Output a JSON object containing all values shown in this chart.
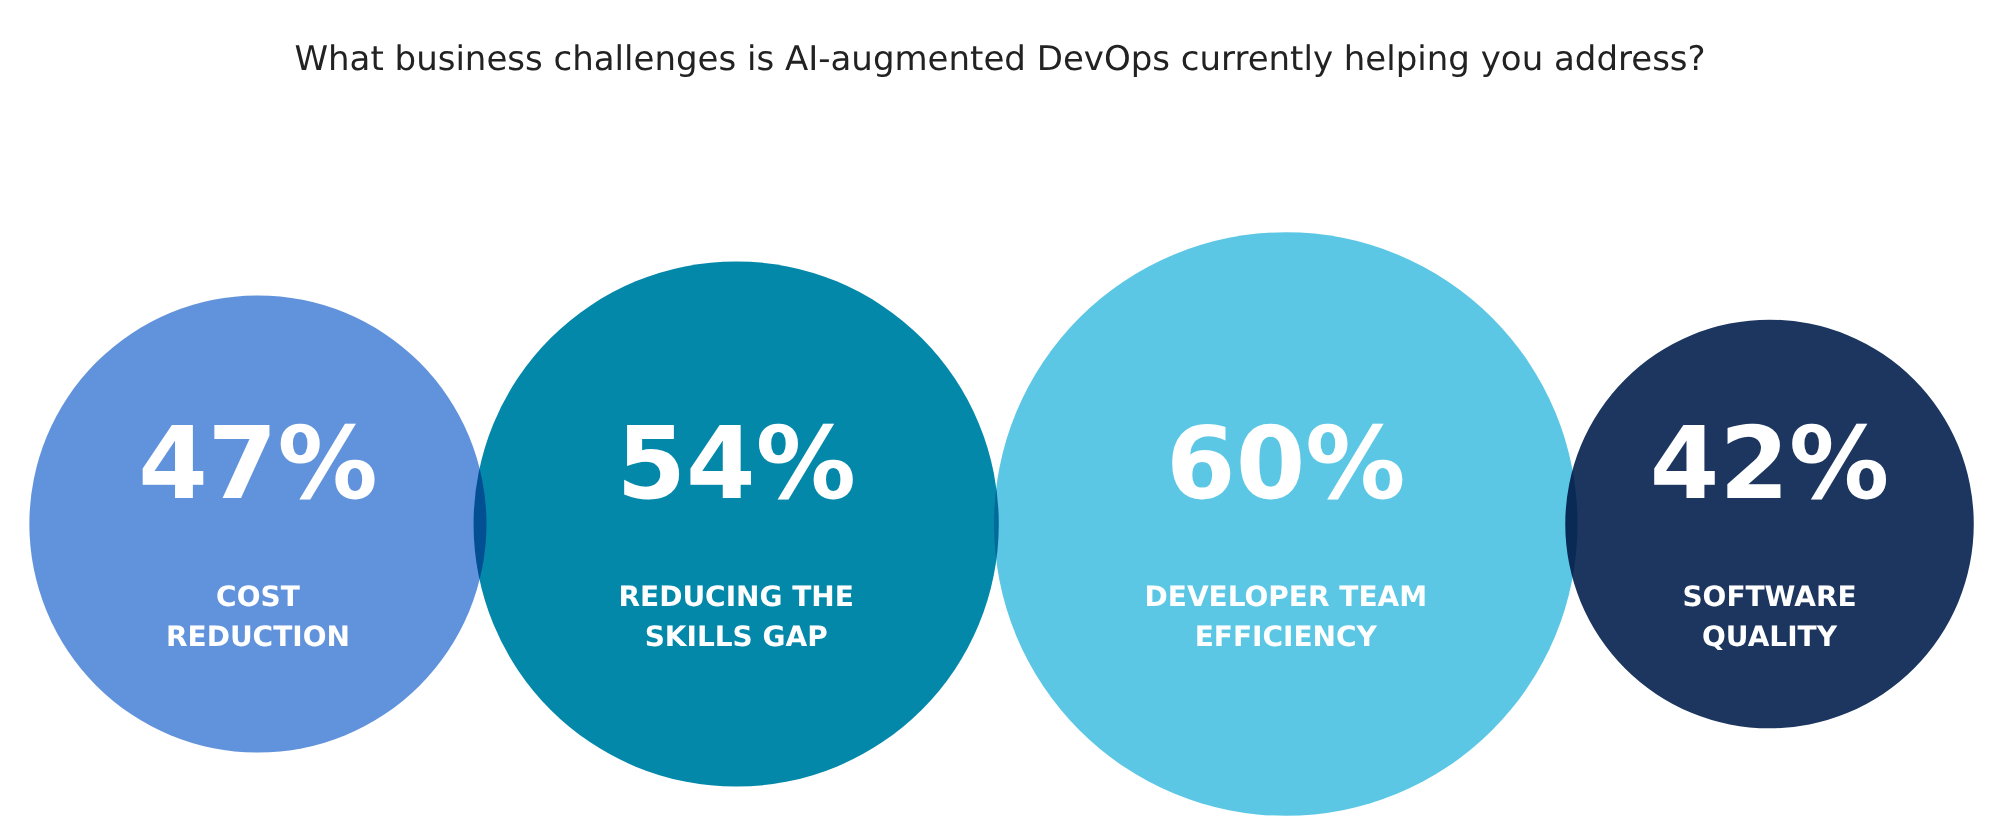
{
  "chart_data": {
    "type": "other",
    "title": "What business challenges is AI-augmented DevOps currently helping you address?",
    "categories": [
      "COST REDUCTION",
      "REDUCING THE SKILLS GAP",
      "DEVELOPER TEAM EFFICIENCY",
      "SOFTWARE QUALITY"
    ],
    "values": [
      47,
      54,
      60,
      42
    ],
    "value_labels": [
      "47%",
      "54%",
      "60%",
      "42%"
    ],
    "colors": [
      "#6193dc",
      "#0388aa",
      "#5bc7e5",
      "#1c3660"
    ]
  }
}
